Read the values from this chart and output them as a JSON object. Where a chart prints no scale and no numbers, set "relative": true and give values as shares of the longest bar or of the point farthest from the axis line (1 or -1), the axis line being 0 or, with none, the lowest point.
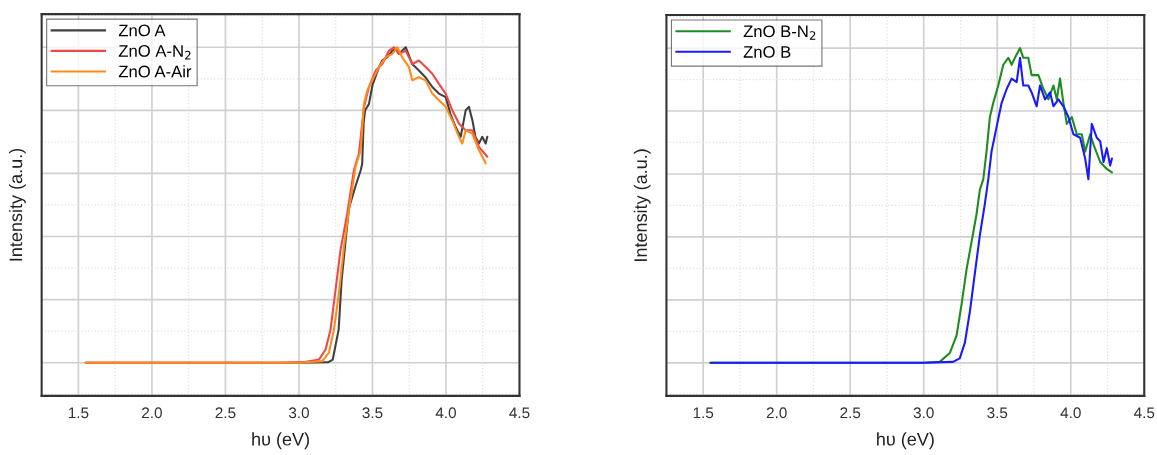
{
  "chart_data": [
    {
      "type": "line",
      "xlabel": "hυ (eV)",
      "ylabel": "Intensity (a.u.)",
      "relative": true,
      "xlim": [
        1.25,
        4.5
      ],
      "xticks": [
        {
          "value": 1.5,
          "label": "1.5"
        },
        {
          "value": 2.0,
          "label": "2.0"
        },
        {
          "value": 2.5,
          "label": "2.5"
        },
        {
          "value": 3.0,
          "label": "3.0"
        },
        {
          "value": 3.5,
          "label": "3.5"
        },
        {
          "value": 4.0,
          "label": "4.0"
        },
        {
          "value": 4.5,
          "label": "4.5"
        }
      ],
      "tick_labels": "x",
      "grid": true,
      "legend": "top left",
      "marker": "none",
      "line_style": "solid",
      "series": [
        {
          "name": "ZnO A",
          "color": "#404040",
          "x": [
            1.55,
            3.0,
            3.2,
            3.23,
            3.27,
            3.29,
            3.32,
            3.34,
            3.385,
            3.42,
            3.43,
            3.44,
            3.45,
            3.476,
            3.5,
            3.544,
            3.567,
            3.6,
            3.635,
            3.658,
            3.68,
            3.726,
            3.77,
            3.816,
            3.86,
            3.907,
            3.952,
            3.998,
            4.03,
            4.066,
            4.1,
            4.134,
            4.156,
            4.18,
            4.2,
            4.224,
            4.247,
            4.27,
            4.281
          ],
          "values": [
            0,
            0,
            0.002,
            0.01,
            0.105,
            0.26,
            0.4,
            0.49,
            0.56,
            0.61,
            0.63,
            0.76,
            0.8,
            0.82,
            0.88,
            0.937,
            0.958,
            0.968,
            0.989,
            0.995,
            0.979,
            1.0,
            0.947,
            0.926,
            0.905,
            0.874,
            0.853,
            0.842,
            0.789,
            0.747,
            0.716,
            0.8,
            0.811,
            0.768,
            0.716,
            0.695,
            0.716,
            0.695,
            0.716
          ]
        },
        {
          "name": "ZnO A-N$_{2}$",
          "color": "#f04848",
          "x": [
            1.55,
            2.9,
            3.05,
            3.136,
            3.181,
            3.215,
            3.249,
            3.283,
            3.329,
            3.374,
            3.408,
            3.442,
            3.476,
            3.522,
            3.567,
            3.612,
            3.646,
            3.68,
            3.726,
            3.771,
            3.816,
            3.862,
            3.907,
            3.952,
            3.998,
            4.043,
            4.088,
            4.134,
            4.179,
            4.224,
            4.281
          ],
          "values": [
            0,
            0,
            0.003,
            0.01,
            0.042,
            0.105,
            0.232,
            0.358,
            0.474,
            0.611,
            0.663,
            0.81,
            0.874,
            0.926,
            0.947,
            0.989,
            1.0,
            0.979,
            0.989,
            0.947,
            0.958,
            0.937,
            0.916,
            0.884,
            0.853,
            0.8,
            0.758,
            0.737,
            0.737,
            0.684,
            0.653
          ]
        },
        {
          "name": "ZnO A-Air",
          "color": "#ff8c1a",
          "x": [
            1.55,
            3.0,
            3.159,
            3.204,
            3.238,
            3.272,
            3.306,
            3.34,
            3.385,
            3.42,
            3.442,
            3.465,
            3.499,
            3.544,
            3.59,
            3.635,
            3.669,
            3.703,
            3.748,
            3.771,
            3.816,
            3.862,
            3.907,
            3.952,
            3.998,
            4.043,
            4.088,
            4.111,
            4.134,
            4.179,
            4.224,
            4.27
          ],
          "values": [
            0,
            0,
            0.005,
            0.032,
            0.105,
            0.221,
            0.368,
            0.484,
            0.621,
            0.674,
            0.821,
            0.863,
            0.895,
            0.937,
            0.968,
            0.979,
            1.0,
            0.968,
            0.937,
            0.895,
            0.905,
            0.895,
            0.853,
            0.832,
            0.811,
            0.768,
            0.716,
            0.695,
            0.737,
            0.726,
            0.674,
            0.632
          ]
        }
      ]
    },
    {
      "type": "line",
      "xlabel": "hυ (eV)",
      "ylabel": "Intensity (a.u.)",
      "relative": true,
      "xlim": [
        1.25,
        4.5
      ],
      "xticks": [
        {
          "value": 1.5,
          "label": "1.5"
        },
        {
          "value": 2.0,
          "label": "2.0"
        },
        {
          "value": 2.5,
          "label": "2.5"
        },
        {
          "value": 3.0,
          "label": "3.0"
        },
        {
          "value": 3.5,
          "label": "3.5"
        },
        {
          "value": 4.0,
          "label": "4.0"
        },
        {
          "value": 4.5,
          "label": "4.5"
        }
      ],
      "tick_labels": "x",
      "grid": true,
      "legend": "top left",
      "marker": "none",
      "line_style": "solid",
      "series": [
        {
          "name": "ZnO B-N$_{2}$",
          "color": "#1e8c1e",
          "x": [
            1.55,
            3.0,
            3.109,
            3.177,
            3.223,
            3.257,
            3.291,
            3.325,
            3.359,
            3.382,
            3.405,
            3.427,
            3.45,
            3.473,
            3.507,
            3.541,
            3.575,
            3.598,
            3.62,
            3.655,
            3.677,
            3.711,
            3.734,
            3.78,
            3.814,
            3.848,
            3.882,
            3.905,
            3.927,
            3.95,
            3.973,
            4.007,
            4.041,
            4.075,
            4.098,
            4.132,
            4.155,
            4.2,
            4.245,
            4.28
          ],
          "values": [
            0,
            0,
            0.003,
            0.031,
            0.086,
            0.185,
            0.296,
            0.384,
            0.472,
            0.55,
            0.583,
            0.671,
            0.781,
            0.826,
            0.881,
            0.947,
            0.969,
            0.947,
            0.969,
            1.0,
            0.969,
            0.969,
            0.914,
            0.914,
            0.87,
            0.837,
            0.881,
            0.837,
            0.903,
            0.826,
            0.759,
            0.781,
            0.726,
            0.726,
            0.671,
            0.726,
            0.693,
            0.638,
            0.616,
            0.605
          ]
        },
        {
          "name": "ZnO B",
          "color": "#1a1aff",
          "x": [
            1.55,
            3.0,
            3.2,
            3.245,
            3.28,
            3.314,
            3.348,
            3.382,
            3.416,
            3.439,
            3.461,
            3.495,
            3.53,
            3.564,
            3.598,
            3.632,
            3.655,
            3.677,
            3.711,
            3.734,
            3.768,
            3.791,
            3.825,
            3.859,
            3.882,
            3.916,
            3.95,
            3.984,
            4.018,
            4.064,
            4.098,
            4.12,
            4.143,
            4.177,
            4.2,
            4.223,
            4.245,
            4.268,
            4.28
          ],
          "values": [
            0,
            0,
            0.003,
            0.014,
            0.064,
            0.163,
            0.285,
            0.406,
            0.506,
            0.583,
            0.671,
            0.748,
            0.826,
            0.87,
            0.903,
            0.892,
            0.969,
            0.881,
            0.881,
            0.859,
            0.815,
            0.881,
            0.837,
            0.859,
            0.815,
            0.837,
            0.815,
            0.781,
            0.726,
            0.715,
            0.649,
            0.583,
            0.759,
            0.715,
            0.704,
            0.638,
            0.682,
            0.627,
            0.649
          ]
        }
      ]
    }
  ]
}
